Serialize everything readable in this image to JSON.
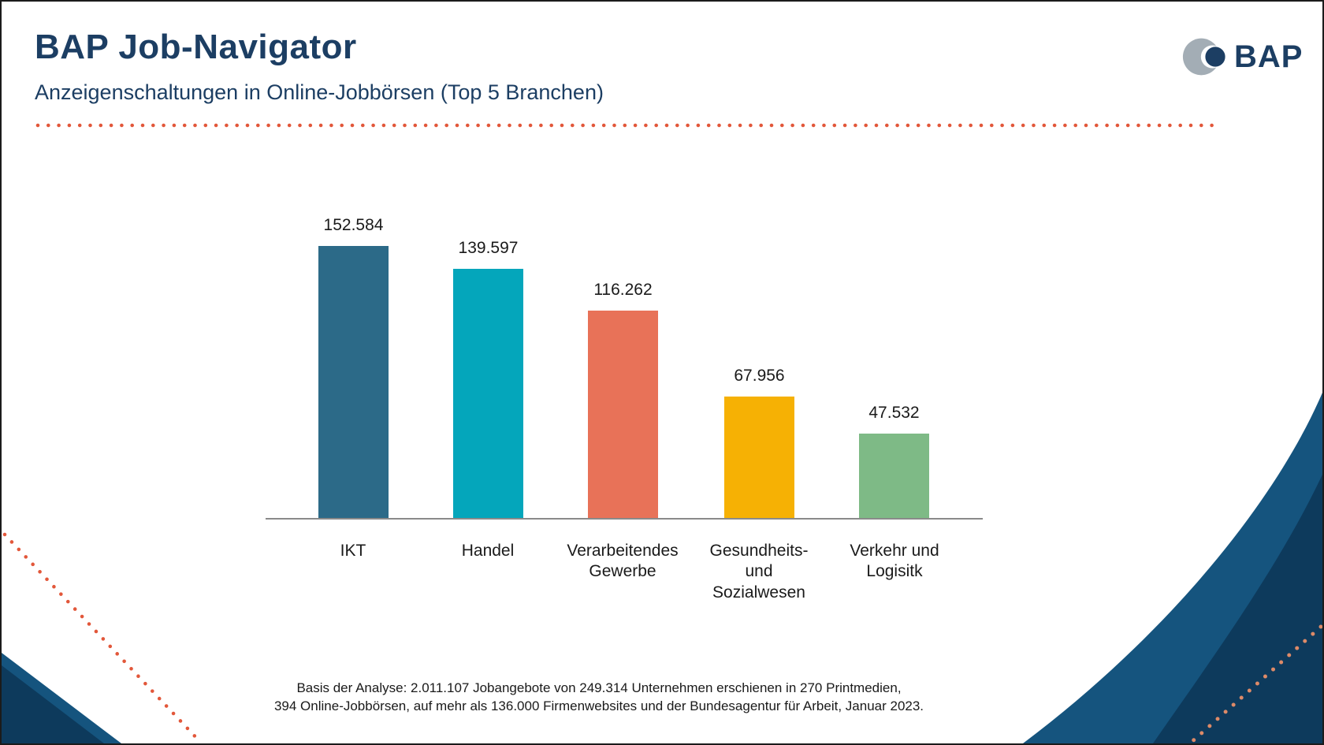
{
  "header": {
    "title": "BAP Job-Navigator",
    "subtitle": "Anzeigenschaltungen in Online-Jobbörsen (Top 5 Branchen)",
    "logo_text": "BAP"
  },
  "chart_data": {
    "type": "bar",
    "title": "Anzeigenschaltungen in Online-Jobbörsen (Top 5 Branchen)",
    "categories": [
      "IKT",
      "Handel",
      "Verarbeitendes\nGewerbe",
      "Gesundheits-\nund\nSozialwesen",
      "Verkehr und\nLogisitk"
    ],
    "values": [
      152584,
      139597,
      116262,
      67956,
      47532
    ],
    "value_labels": [
      "152.584",
      "139.597",
      "116.262",
      "67.956",
      "47.532"
    ],
    "bar_colors": [
      "#2c6a88",
      "#04a6bb",
      "#e87258",
      "#f6b104",
      "#7eba86"
    ],
    "xlabel": "",
    "ylabel": "",
    "ylim": [
      0,
      160000
    ],
    "grid": false,
    "legend": false,
    "data_labels": true
  },
  "footer": {
    "line1": "Basis der Analyse: 2.011.107 Jobangebote von 249.314 Unternehmen erschienen in 270 Printmedien,",
    "line2": "394 Online-Jobbörsen, auf mehr als 136.000 Firmenwebsites und der Bundesagentur für Arbeit, Januar 2023."
  },
  "colors": {
    "navy": "#1c3e63",
    "accent": "#e2573a",
    "dot-on-dark": "#dd8a68",
    "decor-light": "#15547e",
    "decor-dark": "#0d3a5c",
    "axis": "#8a8a8a",
    "text": "#1a1a1a",
    "logo-gray": "#a3adb5"
  },
  "icons": {
    "bap-logo-icon": "gray crescent with overlapping navy circle"
  }
}
